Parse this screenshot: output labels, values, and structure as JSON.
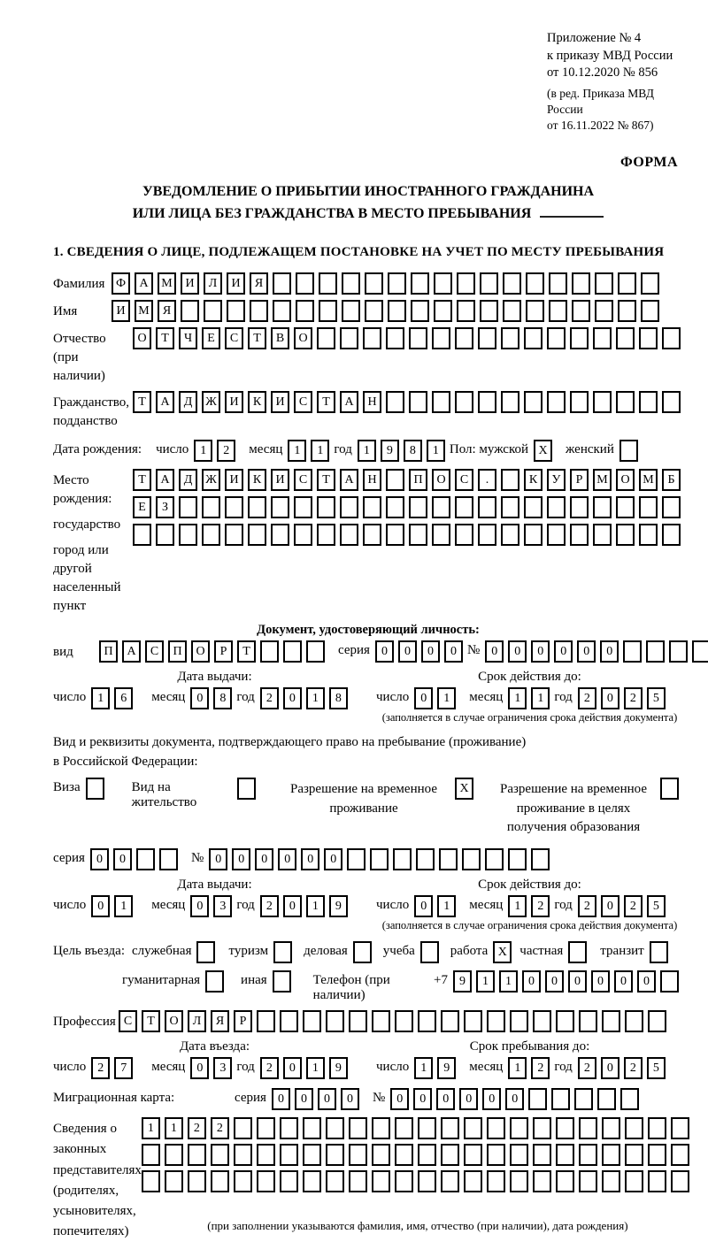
{
  "labels": {
    "day": "число",
    "month": "месяц",
    "year": "год",
    "series": "серия",
    "number": "№",
    "issue_date": "Дата выдачи:",
    "validity": "Срок действия до:",
    "validity_note": "(заполняется в случае ограничения срока действия документа)"
  },
  "annex": {
    "line1": "Приложение № 4",
    "line2": "к приказу МВД России",
    "line3": "от 10.12.2020 № 856",
    "line4": "(в ред. Приказа МВД России",
    "line5": "от 16.11.2022 № 867)",
    "form_label": "ФОРМА"
  },
  "title": {
    "line1": "УВЕДОМЛЕНИЕ О ПРИБЫТИИ ИНОСТРАННОГО ГРАЖДАНИНА",
    "line2": "ИЛИ ЛИЦА БЕЗ ГРАЖДАНСТВА В МЕСТО ПРЕБЫВАНИЯ"
  },
  "section1": {
    "heading": "1. СВЕДЕНИЯ О ЛИЦЕ, ПОДЛЕЖАЩЕМ ПОСТАНОВКЕ НА УЧЕТ ПО МЕСТУ ПРЕБЫВАНИЯ"
  },
  "person": {
    "surname": {
      "label": "Фамилия",
      "boxes": {
        "value": "ФАМИЛИЯ",
        "count": 24
      }
    },
    "name": {
      "label": "Имя",
      "boxes": {
        "value": "ИМЯ",
        "count": 24
      }
    },
    "patronymic": {
      "label1": "Отчество",
      "label2": "(при наличии)",
      "boxes": {
        "value": "ОТЧЕСТВО",
        "count": 24
      }
    },
    "citizenship": {
      "label1": "Гражданство,",
      "label2": "подданство",
      "boxes": {
        "value": "ТАДЖИКИСТАН",
        "count": 24
      }
    },
    "birth_date": {
      "label": "Дата рождения:",
      "day": {
        "value": "12",
        "count": 2
      },
      "month": {
        "value": "11",
        "count": 2
      },
      "year": {
        "value": "1981",
        "count": 4
      },
      "sex_label": "Пол: мужской",
      "male": {
        "value": "X",
        "count": 1
      },
      "female_label": "женский",
      "female": {
        "value": "",
        "count": 1
      }
    },
    "birth_place": {
      "label1": "Место рождения:",
      "label2": "государство",
      "label3": "город или другой",
      "label4": "населенный пункт",
      "row1": {
        "value": "ТАДЖИКИСТАН ПОС. КУРМОМБ",
        "count": 24
      },
      "row2": {
        "value": "ЕЗ",
        "count": 24
      },
      "row3": {
        "value": "",
        "count": 24
      }
    }
  },
  "identity_document": {
    "heading": "Документ, удостоверяющий личность:",
    "type_label": "вид",
    "type": {
      "value": "ПАСПОРТ",
      "count": 10
    },
    "series": {
      "value": "0000",
      "count": 4
    },
    "number": {
      "value": "000000",
      "count": 11
    },
    "issue": {
      "day": {
        "value": "16",
        "count": 2
      },
      "month": {
        "value": "08",
        "count": 2
      },
      "year": {
        "value": "2018",
        "count": 4
      }
    },
    "validity": {
      "day": {
        "value": "01",
        "count": 2
      },
      "month": {
        "value": "11",
        "count": 2
      },
      "year": {
        "value": "2025",
        "count": 4
      }
    }
  },
  "residence_document": {
    "intro1": "Вид и реквизиты документа, подтверждающего право на пребывание (проживание)",
    "intro2": "в Российской Федерации:",
    "visa_label": "Виза",
    "visa": {
      "value": "",
      "count": 1
    },
    "residence_permit_label": "Вид на жительство",
    "residence_permit": {
      "value": "",
      "count": 1
    },
    "temp_permit_label1": "Разрешение на временное",
    "temp_permit_label2": "проживание",
    "temp_permit": {
      "value": "X",
      "count": 1
    },
    "edu_permit_label1": "Разрешение на временное",
    "edu_permit_label2": "проживание в целях",
    "edu_permit_label3": "получения образования",
    "edu_permit": {
      "value": "",
      "count": 1
    },
    "series": {
      "value": "00",
      "count": 4
    },
    "number": {
      "value": "000000",
      "count": 15
    },
    "issue": {
      "day": {
        "value": "01",
        "count": 2
      },
      "month": {
        "value": "03",
        "count": 2
      },
      "year": {
        "value": "2019",
        "count": 4
      }
    },
    "validity": {
      "day": {
        "value": "01",
        "count": 2
      },
      "month": {
        "value": "12",
        "count": 2
      },
      "year": {
        "value": "2025",
        "count": 4
      }
    }
  },
  "entry_purpose": {
    "label": "Цель въезда:",
    "options": [
      {
        "label": "служебная",
        "box": {
          "value": "",
          "count": 1
        }
      },
      {
        "label": "туризм",
        "box": {
          "value": "",
          "count": 1
        }
      },
      {
        "label": "деловая",
        "box": {
          "value": "",
          "count": 1
        }
      },
      {
        "label": "учеба",
        "box": {
          "value": "",
          "count": 1
        }
      },
      {
        "label": "работа",
        "box": {
          "value": "X",
          "count": 1
        }
      },
      {
        "label": "частная",
        "box": {
          "value": "",
          "count": 1
        }
      },
      {
        "label": "транзит",
        "box": {
          "value": "",
          "count": 1
        }
      },
      {
        "label": "гуманитарная",
        "box": {
          "value": "",
          "count": 1
        }
      },
      {
        "label": "иная",
        "box": {
          "value": "",
          "count": 1
        }
      }
    ],
    "phone_label": "Телефон (при наличии)",
    "phone_prefix": "+7",
    "phone": {
      "value": "911000000",
      "count": 10
    }
  },
  "profession": {
    "label": "Профессия",
    "boxes": {
      "value": "СТОЛЯР",
      "count": 24
    }
  },
  "entry_dates": {
    "entry_heading": "Дата въезда:",
    "entry": {
      "day": {
        "value": "27",
        "count": 2
      },
      "month": {
        "value": "03",
        "count": 2
      },
      "year": {
        "value": "2019",
        "count": 4
      }
    },
    "stay_heading": "Срок пребывания до:",
    "stay": {
      "day": {
        "value": "19",
        "count": 2
      },
      "month": {
        "value": "12",
        "count": 2
      },
      "year": {
        "value": "2025",
        "count": 4
      }
    }
  },
  "migration_card": {
    "label": "Миграционная карта:",
    "series": {
      "value": "0000",
      "count": 4
    },
    "number": {
      "value": "000000",
      "count": 11
    }
  },
  "representatives": {
    "label1": "Сведения о",
    "label2": "законных",
    "label3": "представителях",
    "label4": "(родителях,",
    "label5": "усыновителях,",
    "label6": "попечителях)",
    "row1": {
      "value": "1122",
      "count": 24
    },
    "row2": {
      "value": "",
      "count": 24
    },
    "row3": {
      "value": "",
      "count": 24
    },
    "note": "(при заполнении указываются фамилия, имя, отчество (при наличии), дата рождения)"
  }
}
